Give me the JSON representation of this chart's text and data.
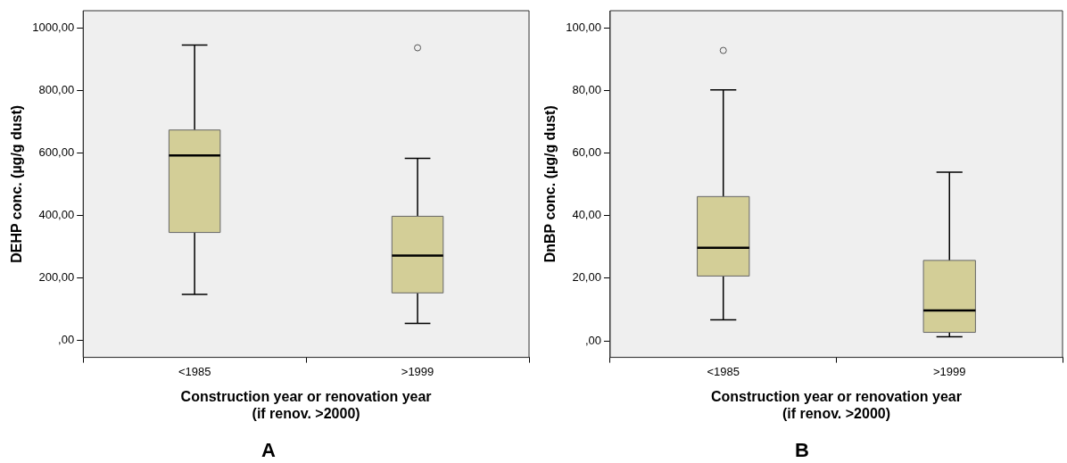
{
  "chart_data": [
    {
      "type": "box",
      "title": "A",
      "xlabel": "Construction year or renovation year\n(if renov. >2000)",
      "ylabel": "DEHP conc. (µg/g dust)",
      "categories": [
        "<1985",
        ">1999"
      ],
      "series": [
        {
          "color": "#d3ce97",
          "boxes": [
            {
              "low": 146,
              "q1": 345,
              "median": 592,
              "q3": 674,
              "high": 947
            },
            {
              "low": 53,
              "q1": 151,
              "median": 271,
              "q3": 397,
              "high": 583,
              "outliers": [
                938
              ]
            }
          ]
        }
      ],
      "ylim": [
        -56,
        1057
      ],
      "yticks": [
        {
          "value": 0,
          "label": ",00"
        },
        {
          "value": 200,
          "label": "200,00"
        },
        {
          "value": 400,
          "label": "400,00"
        },
        {
          "value": 600,
          "label": "600,00"
        },
        {
          "value": 800,
          "label": "800,00"
        },
        {
          "value": 1000,
          "label": "1000,00"
        }
      ]
    },
    {
      "type": "box",
      "title": "B",
      "xlabel": "Construction year or renovation year\n(if renov. >2000)",
      "ylabel": "DnBP conc. (µg/g dust)",
      "categories": [
        "<1985",
        ">1999"
      ],
      "series": [
        {
          "color": "#d3ce97",
          "boxes": [
            {
              "low": 6.7,
              "q1": 20.7,
              "median": 29.7,
              "q3": 46.1,
              "high": 80.2,
              "outliers": [
                92.8
              ]
            },
            {
              "low": 1.3,
              "q1": 2.7,
              "median": 9.7,
              "q3": 25.7,
              "high": 53.9
            }
          ]
        }
      ],
      "ylim": [
        -5.3,
        105.5
      ],
      "yticks": [
        {
          "value": 0,
          "label": ",00"
        },
        {
          "value": 20,
          "label": "20,00"
        },
        {
          "value": 40,
          "label": "40,00"
        },
        {
          "value": 60,
          "label": "60,00"
        },
        {
          "value": 80,
          "label": "80,00"
        },
        {
          "value": 100,
          "label": "100,00"
        }
      ]
    }
  ]
}
